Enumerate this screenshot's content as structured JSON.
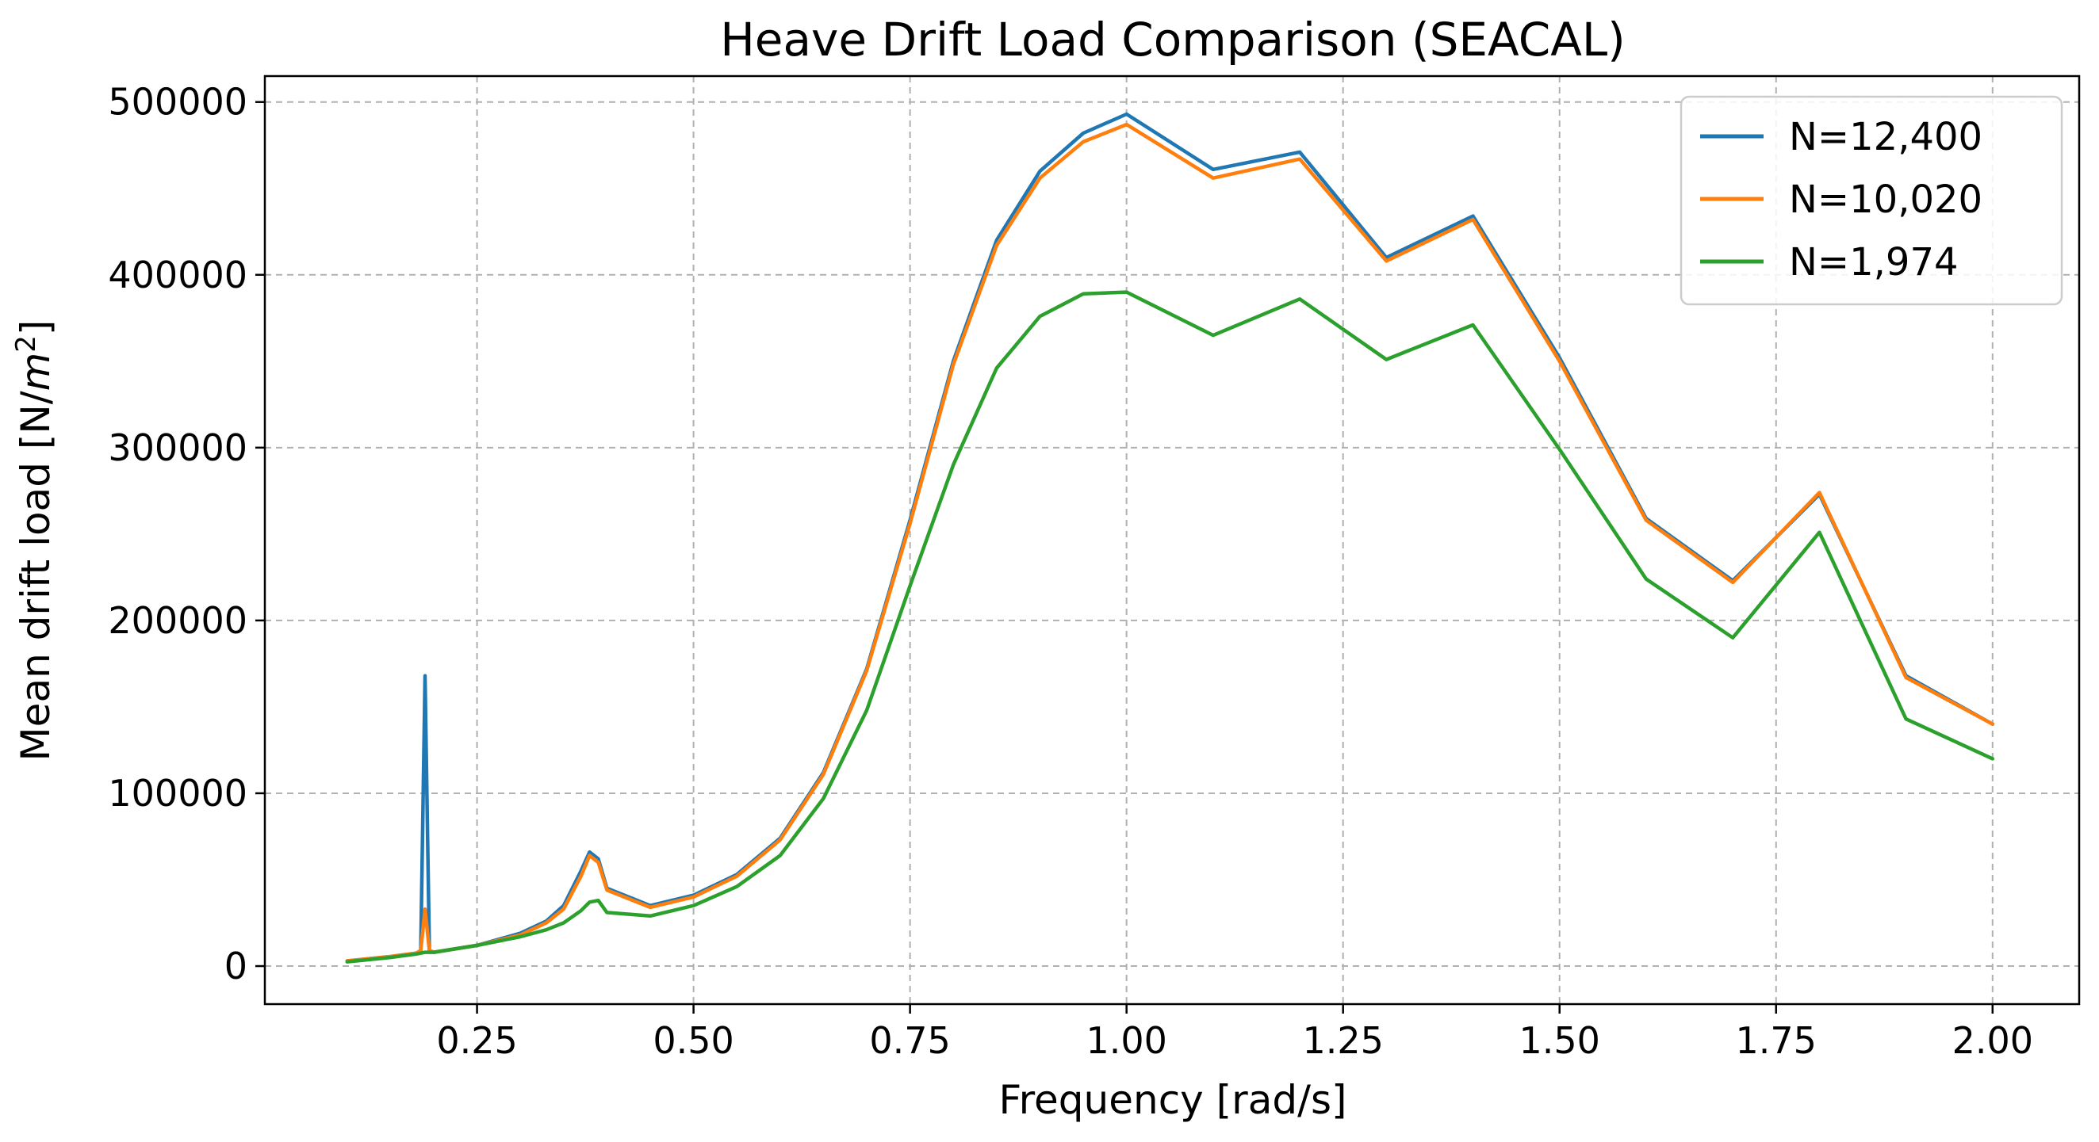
{
  "chart_data": {
    "type": "line",
    "title": "Heave Drift Load Comparison (SEACAL)",
    "xlabel": "Frequency [rad/s]",
    "ylabel_prefix": "Mean drift load [N/",
    "ylabel_unit": "m",
    "ylabel_exp": "2",
    "ylabel_suffix": "]",
    "xlim": [
      0.005,
      2.1
    ],
    "ylim": [
      -22000,
      515000
    ],
    "x_ticks": [
      0.25,
      0.5,
      0.75,
      1.0,
      1.25,
      1.5,
      1.75,
      2.0
    ],
    "x_tick_labels": [
      "0.25",
      "0.50",
      "0.75",
      "1.00",
      "1.25",
      "1.50",
      "1.75",
      "2.00"
    ],
    "y_ticks": [
      0,
      100000,
      200000,
      300000,
      400000,
      500000
    ],
    "y_tick_labels": [
      "0",
      "100000",
      "200000",
      "300000",
      "400000",
      "500000"
    ],
    "grid": true,
    "legend_position": "top-right",
    "series": [
      {
        "name": "N=12,400",
        "color": "#1f77b4",
        "x": [
          0.1,
          0.15,
          0.18,
          0.185,
          0.19,
          0.195,
          0.2,
          0.25,
          0.3,
          0.33,
          0.35,
          0.37,
          0.38,
          0.39,
          0.4,
          0.45,
          0.5,
          0.55,
          0.6,
          0.65,
          0.7,
          0.75,
          0.8,
          0.85,
          0.9,
          0.95,
          1.0,
          1.1,
          1.2,
          1.3,
          1.4,
          1.5,
          1.6,
          1.7,
          1.8,
          1.9,
          2.0
        ],
        "y": [
          3000,
          5500,
          7500,
          9000,
          168000,
          9000,
          8000,
          12000,
          19000,
          26000,
          35000,
          55000,
          66000,
          62000,
          45000,
          35000,
          41000,
          53000,
          74000,
          112000,
          172000,
          258000,
          350000,
          420000,
          460000,
          482000,
          493000,
          461000,
          471000,
          410000,
          434000,
          352000,
          259000,
          223000,
          273000,
          168000,
          140000
        ]
      },
      {
        "name": "N=10,020",
        "color": "#ff7f0e",
        "x": [
          0.1,
          0.15,
          0.18,
          0.185,
          0.19,
          0.195,
          0.2,
          0.25,
          0.3,
          0.33,
          0.35,
          0.37,
          0.38,
          0.39,
          0.4,
          0.45,
          0.5,
          0.55,
          0.6,
          0.65,
          0.7,
          0.75,
          0.8,
          0.85,
          0.9,
          0.95,
          1.0,
          1.1,
          1.2,
          1.3,
          1.4,
          1.5,
          1.6,
          1.7,
          1.8,
          1.9,
          2.0
        ],
        "y": [
          3000,
          5500,
          7500,
          9000,
          33000,
          9000,
          8000,
          12000,
          18000,
          25000,
          33000,
          52000,
          64000,
          60000,
          44000,
          34000,
          40000,
          52000,
          73000,
          111000,
          171000,
          256000,
          348000,
          417000,
          456000,
          477000,
          487000,
          456000,
          467000,
          408000,
          432000,
          350000,
          258000,
          222000,
          274000,
          167000,
          140000
        ]
      },
      {
        "name": "N=1,974",
        "color": "#2ca02c",
        "x": [
          0.1,
          0.15,
          0.18,
          0.19,
          0.2,
          0.25,
          0.3,
          0.33,
          0.35,
          0.37,
          0.38,
          0.39,
          0.4,
          0.45,
          0.5,
          0.55,
          0.6,
          0.65,
          0.7,
          0.75,
          0.8,
          0.85,
          0.9,
          0.95,
          1.0,
          1.1,
          1.2,
          1.3,
          1.4,
          1.5,
          1.6,
          1.7,
          1.8,
          1.9,
          2.0
        ],
        "y": [
          2500,
          5000,
          7000,
          8000,
          8000,
          12000,
          17000,
          21000,
          25000,
          32000,
          37000,
          38000,
          31000,
          29000,
          35000,
          46000,
          64000,
          97000,
          148000,
          220000,
          290000,
          346000,
          376000,
          389000,
          390000,
          365000,
          386000,
          351000,
          371000,
          299000,
          224000,
          190000,
          251000,
          143000,
          120000
        ]
      }
    ]
  }
}
